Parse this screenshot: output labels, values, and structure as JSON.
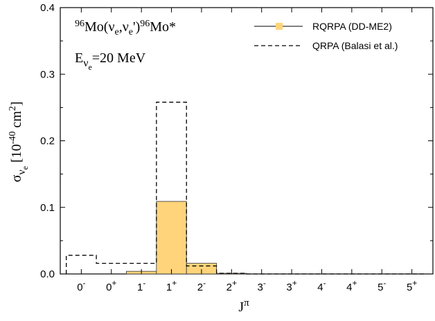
{
  "chart_data": {
    "type": "bar",
    "title": "",
    "xlabel": "J",
    "xlabel_sup": "π",
    "ylabel_main": "σ",
    "ylabel_sub": "ν",
    "ylabel_subsub": "e",
    "ylabel_unit_open": " [10",
    "ylabel_unit_exp": "-40",
    "ylabel_unit_mid": " cm",
    "ylabel_unit_exp2": "2",
    "ylabel_unit_close": "]",
    "ylim": [
      0,
      0.4
    ],
    "yticks": [
      "0.0",
      "0.1",
      "0.2",
      "0.3",
      "0.4"
    ],
    "ytick_values": [
      0,
      0.1,
      0.2,
      0.3,
      0.4
    ],
    "categories": [
      {
        "base": "0",
        "sup": "-"
      },
      {
        "base": "0",
        "sup": "+"
      },
      {
        "base": "1",
        "sup": "-"
      },
      {
        "base": "1",
        "sup": "+"
      },
      {
        "base": "2",
        "sup": "-"
      },
      {
        "base": "2",
        "sup": "+"
      },
      {
        "base": "3",
        "sup": "-"
      },
      {
        "base": "3",
        "sup": "+"
      },
      {
        "base": "4",
        "sup": "-"
      },
      {
        "base": "4",
        "sup": "+"
      },
      {
        "base": "5",
        "sup": "-"
      },
      {
        "base": "5",
        "sup": "+"
      }
    ],
    "series": [
      {
        "name": "RQRPA (DD-ME2)",
        "style": "filled-step",
        "color": "#FFD47A",
        "values": [
          0.0,
          0.0,
          0.004,
          0.109,
          0.016,
          0.001,
          0.0,
          0.0,
          0.0,
          0.0,
          0.0,
          0.0
        ]
      },
      {
        "name": "QRPA (Balasi et al.)",
        "style": "dashed-step",
        "color": "#000000",
        "values": [
          0.028,
          0.016,
          0.016,
          0.258,
          0.012,
          0.001,
          0.0,
          0.0,
          0.0,
          0.0,
          0.0,
          0.0
        ]
      }
    ],
    "legend_placement": "top-right",
    "grid": false,
    "annotation_reaction": {
      "pre_sup": "96",
      "part1": "Mo(ν",
      "sub1": "e",
      "part2": ",ν",
      "sub2": "e",
      "part3": "')",
      "mid_sup": "96",
      "part4": "Mo*"
    },
    "annotation_energy": {
      "E": "E",
      "nu": "ν",
      "e": "e",
      "value": "=20 MeV"
    }
  }
}
